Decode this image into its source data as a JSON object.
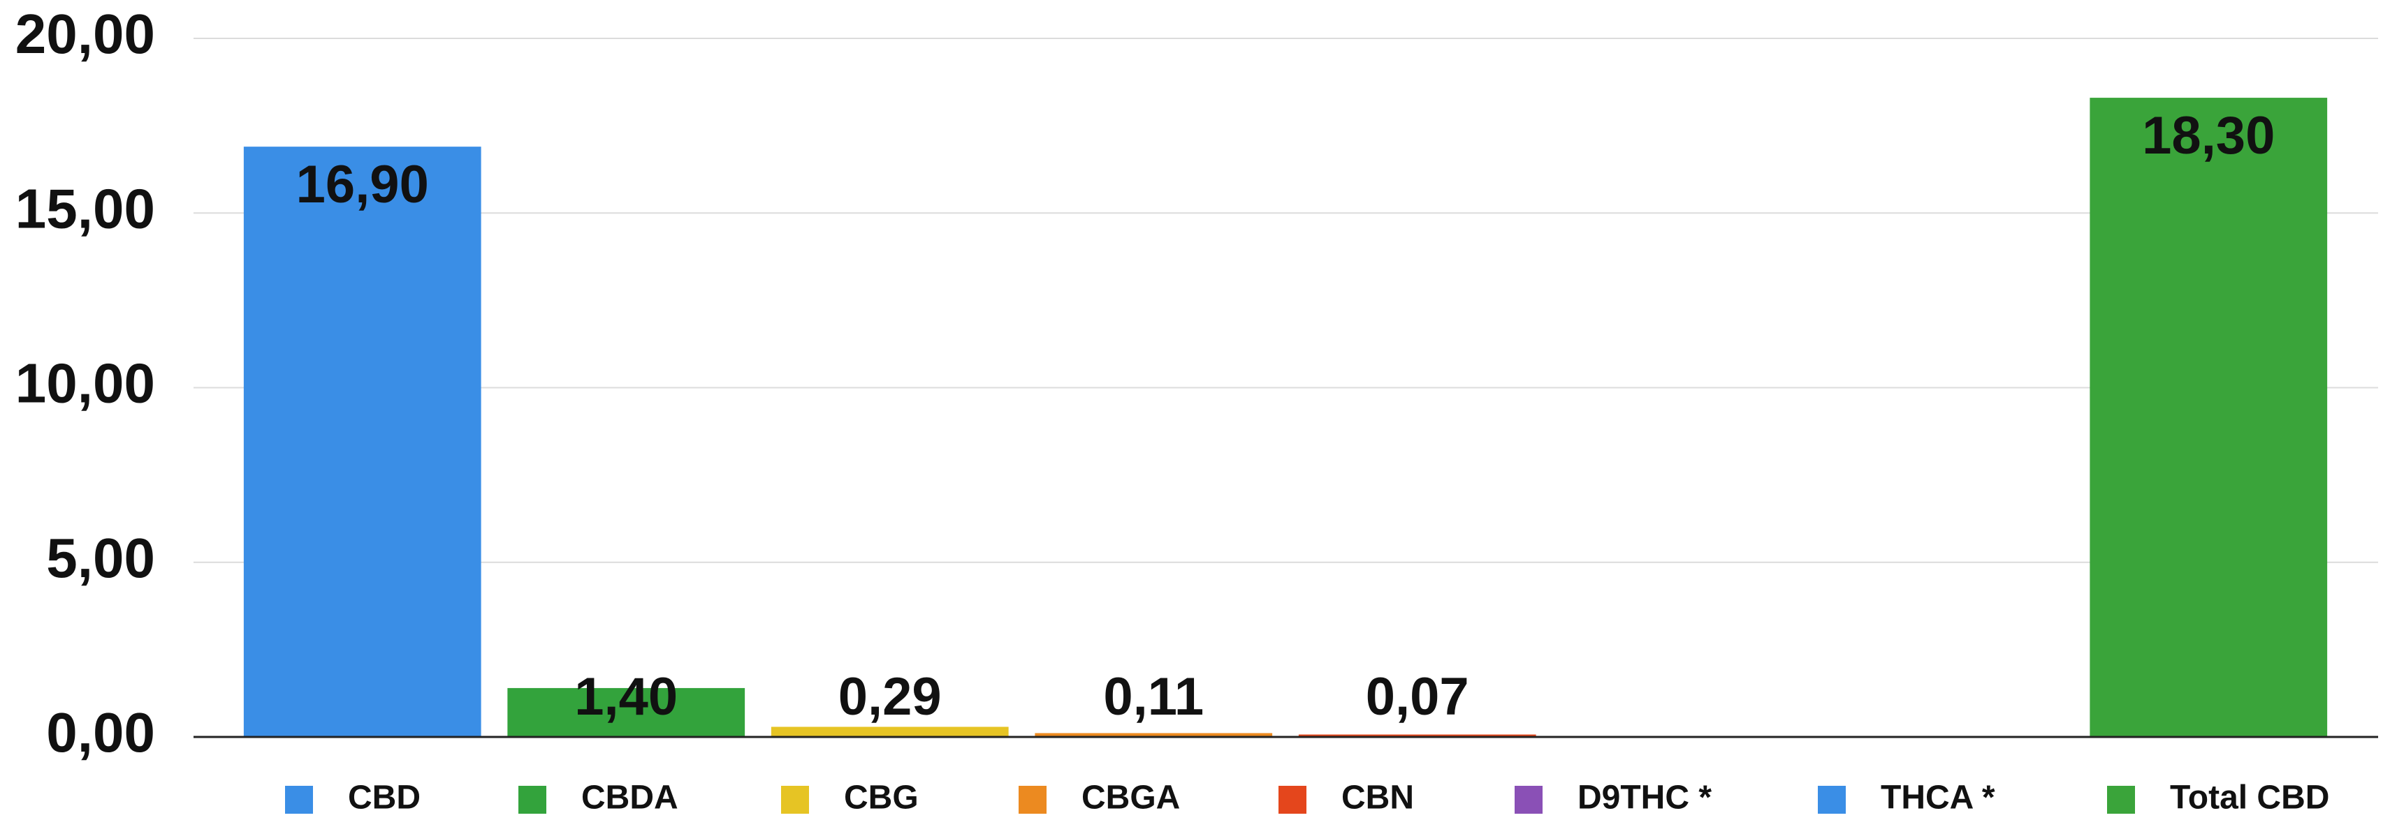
{
  "chart_data": {
    "type": "bar",
    "categories": [
      "CBD",
      "CBDA",
      "CBG",
      "CBGA",
      "CBN",
      "D9THC *",
      "THCA *",
      "Total CBD"
    ],
    "values": [
      16.9,
      1.4,
      0.29,
      0.11,
      0.07,
      null,
      null,
      18.3
    ],
    "value_labels": [
      "16,90",
      "1,40",
      "0,29",
      "0,11",
      "0,07",
      null,
      null,
      "18,30"
    ],
    "colors": [
      "#3a8ee6",
      "#33a33c",
      "#e6c424",
      "#ec8a20",
      "#e4461c",
      "#8a50b6",
      "#3a8ee6",
      "#3aa43a"
    ],
    "ylim": [
      0,
      20
    ],
    "yticks": [
      {
        "value": 0,
        "label": "0,00"
      },
      {
        "value": 5,
        "label": "5,00"
      },
      {
        "value": 10,
        "label": "10,00"
      },
      {
        "value": 15,
        "label": "15,00"
      },
      {
        "value": 20,
        "label": "20,00"
      }
    ],
    "grid": true,
    "legend": "bottom"
  }
}
